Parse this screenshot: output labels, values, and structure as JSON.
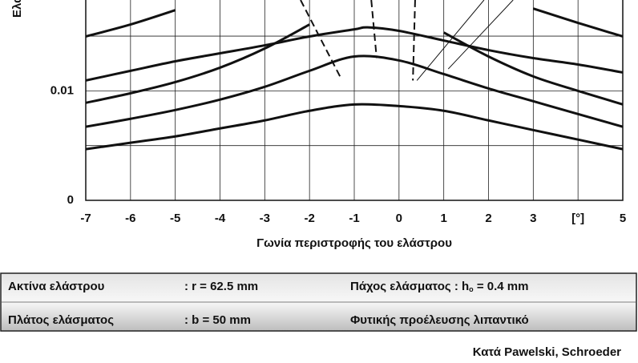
{
  "chart_data": {
    "type": "line",
    "y_label": "Ελασ",
    "x_label": "Γωνία περιστροφής του ελάστρου",
    "xlim": [
      -7,
      5
    ],
    "ylim": [
      0,
      0.0183
    ],
    "xticks": [
      -7,
      -6,
      -5,
      -4,
      -3,
      -2,
      -1,
      0,
      1,
      2,
      3,
      {
        "value": 4,
        "label": "[°]"
      },
      5
    ],
    "yticks": [
      0,
      0.01
    ],
    "minor_ygrid": [
      0.005,
      0.015
    ],
    "grid": true,
    "series": [
      {
        "color": "#111111",
        "line_style": "solid",
        "x": [
          -7,
          -6,
          -5,
          -4,
          -3,
          -2,
          -1,
          0,
          1,
          2,
          3,
          4,
          5
        ],
        "values": [
          0.00467,
          0.00526,
          0.00584,
          0.00657,
          0.0073,
          0.00818,
          0.00876,
          0.00861,
          0.00818,
          0.0073,
          0.00642,
          0.00555,
          0.00467
        ]
      },
      {
        "color": "#111111",
        "line_style": "solid",
        "x": [
          -7,
          -6,
          -5,
          -4,
          -3,
          -2,
          -1,
          0,
          1,
          2,
          3,
          4,
          5
        ],
        "values": [
          0.00672,
          0.00745,
          0.00825,
          0.0092,
          0.01037,
          0.01183,
          0.01314,
          0.01278,
          0.01153,
          0.01022,
          0.00905,
          0.00788,
          0.00672
        ]
      },
      {
        "color": "#111111",
        "line_style": "solid",
        "x": [
          -7,
          -6,
          -5,
          -4,
          -3,
          -2,
          -1,
          0,
          1,
          2,
          3,
          4,
          5
        ],
        "values": [
          0.00891,
          0.00978,
          0.0108,
          0.01212,
          0.01387,
          0.01606,
          null,
          null,
          0.01533,
          0.01314,
          0.01132,
          0.01,
          0.00876
        ]
      },
      {
        "color": "#111111",
        "line_style": "solid",
        "x": [
          -7,
          -6,
          -5,
          -4,
          -3,
          -2,
          -1,
          -0.7,
          0,
          1,
          2,
          3,
          4,
          5
        ],
        "values": [
          0.01095,
          0.01183,
          0.0127,
          0.01343,
          0.01416,
          0.01497,
          0.01562,
          0.0158,
          0.01548,
          0.0146,
          0.01372,
          0.01299,
          0.01241,
          0.01168
        ]
      },
      {
        "color": "#111111",
        "line_style": "solid",
        "x": [
          -7,
          -6,
          -5,
          -4,
          3,
          4,
          5
        ],
        "values": [
          0.01497,
          0.01606,
          0.01737,
          null,
          0.01752,
          0.01621,
          0.01497
        ]
      },
      {
        "color": "#111111",
        "line_style": "dashed",
        "x": [
          -2.2,
          -1.3
        ],
        "values": [
          0.0183,
          0.01117
        ]
      },
      {
        "color": "#111111",
        "line_style": "dashed",
        "x": [
          -0.62,
          -0.5
        ],
        "values": [
          0.0183,
          0.013
        ]
      },
      {
        "color": "#111111",
        "line_style": "dashed",
        "x": [
          0.36,
          0.31
        ],
        "values": [
          0.0183,
          0.01095
        ]
      },
      {
        "color": "#111111",
        "line_style": "thin",
        "x": [
          0.4,
          1.9
        ],
        "values": [
          0.01095,
          0.0183
        ]
      },
      {
        "color": "#111111",
        "line_style": "thin",
        "x": [
          1.1,
          2.55
        ],
        "values": [
          0.012,
          0.0183
        ]
      }
    ]
  },
  "table": {
    "rows": [
      [
        "Ακτίνα ελάστρου",
        ": r = 62.5 mm",
        {
          "text": "Πάχος ελάσματος : h",
          "sub": "o",
          "rest": " = 0.4 mm"
        }
      ],
      [
        "Πλάτος ελάσματος",
        ": b = 50 mm",
        "Φυτικής προέλευσης λιπαντικό"
      ]
    ]
  },
  "credit": "Κατά Pawelski, Schroeder"
}
